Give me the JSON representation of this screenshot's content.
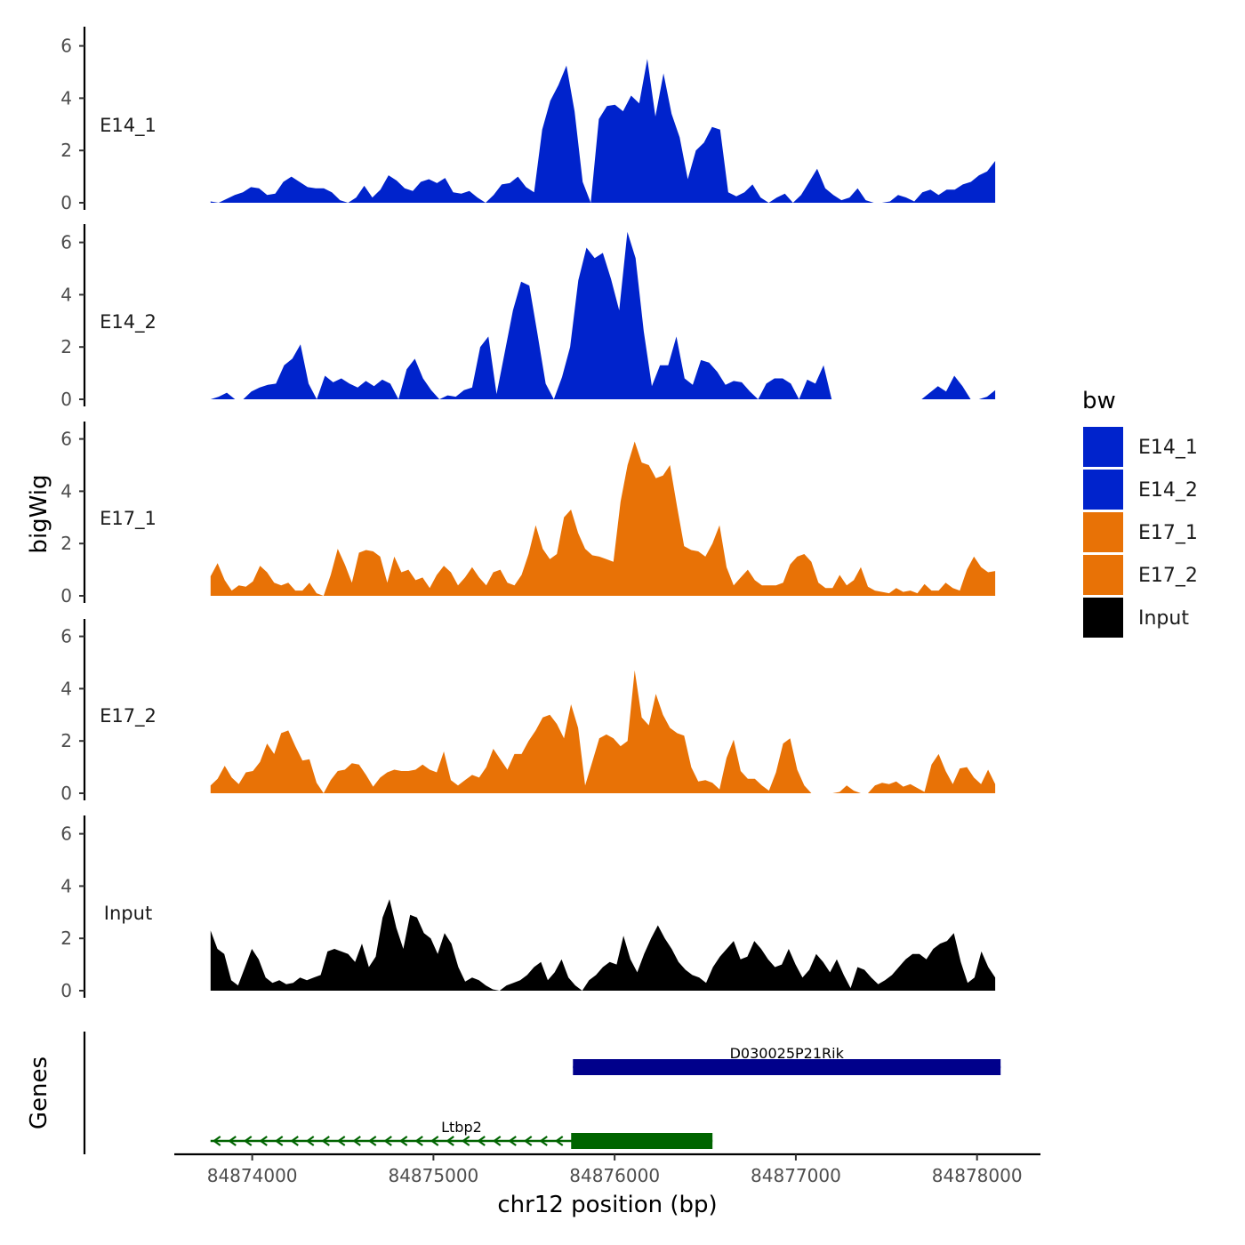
{
  "chart_data": {
    "type": "area",
    "ylabel": "bigWig",
    "xlabel": "chr12 position (bp)",
    "ylim": [
      0,
      6.6
    ],
    "yticks": [
      "0",
      "2",
      "4",
      "6"
    ],
    "xlim": [
      84873570,
      84878350
    ],
    "xrange_data": [
      84873770,
      84878100
    ],
    "xticks": [
      84874000,
      84875000,
      84876000,
      84877000,
      84878000
    ],
    "xtick_labels": [
      "84874000",
      "84875000",
      "84876000",
      "84877000",
      "84878000"
    ],
    "legend": {
      "title": "bw",
      "items": [
        {
          "label": "E14_1",
          "color": "#0023cc"
        },
        {
          "label": "E14_2",
          "color": "#0023cc"
        },
        {
          "label": "E17_1",
          "color": "#e87206"
        },
        {
          "label": "E17_2",
          "color": "#e87206"
        },
        {
          "label": "Input",
          "color": "#000000"
        }
      ]
    },
    "series": [
      {
        "name": "E14_1",
        "color": "#0023cc",
        "values": [
          0.05,
          0,
          0.15,
          0.3,
          0.4,
          0.6,
          0.55,
          0.3,
          0.35,
          0.8,
          1.0,
          0.8,
          0.6,
          0.55,
          0.55,
          0.4,
          0.1,
          0,
          0.2,
          0.65,
          0.2,
          0.5,
          1.05,
          0.85,
          0.55,
          0.45,
          0.8,
          0.9,
          0.75,
          0.95,
          0.4,
          0.35,
          0.45,
          0.2,
          0,
          0.3,
          0.7,
          0.75,
          1.0,
          0.6,
          0.4,
          2.8,
          3.9,
          4.5,
          5.25,
          3.5,
          0.8,
          0,
          3.2,
          3.7,
          3.75,
          3.5,
          4.1,
          3.8,
          5.5,
          3.3,
          4.95,
          3.4,
          2.5,
          0.9,
          2.0,
          2.3,
          2.9,
          2.8,
          0.4,
          0.25,
          0.4,
          0.7,
          0.2,
          0,
          0.2,
          0.35,
          0,
          0.3,
          0.8,
          1.3,
          0.55,
          0.3,
          0.1,
          0.2,
          0.55,
          0.1,
          0,
          0,
          0.05,
          0.3,
          0.2,
          0.05,
          0.4,
          0.5,
          0.3,
          0.5,
          0.5,
          0.7,
          0.8,
          1.05,
          1.2,
          1.6
        ]
      },
      {
        "name": "E14_2",
        "color": "#0023cc",
        "values": [
          0,
          0.1,
          0.25,
          0,
          0,
          0.3,
          0.45,
          0.55,
          0.6,
          1.3,
          1.55,
          2.1,
          0.6,
          0,
          0.9,
          0.65,
          0.8,
          0.6,
          0.45,
          0.7,
          0.5,
          0.75,
          0.6,
          0,
          1.15,
          1.55,
          0.8,
          0.35,
          0,
          0.15,
          0.1,
          0.35,
          0.45,
          2.0,
          2.4,
          0.2,
          1.8,
          3.4,
          4.5,
          4.35,
          2.5,
          0.6,
          0,
          0.85,
          2.0,
          4.55,
          5.8,
          5.4,
          5.6,
          4.6,
          3.4,
          6.4,
          5.4,
          2.6,
          0.5,
          1.3,
          1.3,
          2.4,
          0.8,
          0.55,
          1.5,
          1.4,
          1.05,
          0.55,
          0.7,
          0.65,
          0.3,
          0,
          0.6,
          0.8,
          0.8,
          0.6,
          0,
          0.75,
          0.6,
          1.3,
          0,
          0,
          0,
          0,
          0,
          0,
          0,
          0,
          0,
          0,
          0,
          0,
          0.25,
          0.5,
          0.3,
          0.9,
          0.5,
          0,
          0,
          0.1,
          0.35
        ]
      },
      {
        "name": "E17_1",
        "color": "#e87206",
        "values": [
          0.75,
          1.25,
          0.6,
          0.2,
          0.4,
          0.35,
          0.55,
          1.15,
          0.9,
          0.5,
          0.4,
          0.5,
          0.2,
          0.2,
          0.5,
          0.1,
          0,
          0.8,
          1.8,
          1.2,
          0.5,
          1.65,
          1.75,
          1.7,
          1.5,
          0.5,
          1.5,
          0.9,
          1.0,
          0.6,
          0.7,
          0.3,
          0.8,
          1.15,
          0.9,
          0.4,
          0.7,
          1.1,
          0.7,
          0.4,
          0.9,
          1.0,
          0.5,
          0.4,
          0.8,
          1.6,
          2.7,
          1.8,
          1.4,
          1.6,
          3.0,
          3.3,
          2.4,
          1.8,
          1.55,
          1.5,
          1.4,
          1.3,
          3.6,
          5.0,
          5.9,
          5.1,
          5.0,
          4.5,
          4.6,
          5.0,
          3.4,
          1.9,
          1.75,
          1.7,
          1.5,
          2.0,
          2.7,
          1.1,
          0.4,
          0.7,
          1.0,
          0.6,
          0.4,
          0.4,
          0.4,
          0.5,
          1.2,
          1.5,
          1.6,
          1.3,
          0.5,
          0.3,
          0.3,
          0.8,
          0.4,
          0.6,
          1.1,
          0.35,
          0.2,
          0.15,
          0.1,
          0.3,
          0.15,
          0.2,
          0.1,
          0.45,
          0.2,
          0.2,
          0.5,
          0.3,
          0.2,
          1.0,
          1.5,
          1.1,
          0.9,
          0.95
        ]
      },
      {
        "name": "E17_2",
        "color": "#e87206",
        "values": [
          0.3,
          0.55,
          1.05,
          0.6,
          0.35,
          0.8,
          0.85,
          1.2,
          1.9,
          1.5,
          2.3,
          2.4,
          1.8,
          1.25,
          1.3,
          0.4,
          0,
          0.5,
          0.85,
          0.9,
          1.15,
          1.1,
          0.7,
          0.25,
          0.6,
          0.8,
          0.9,
          0.85,
          0.85,
          0.9,
          1.1,
          0.9,
          0.8,
          1.6,
          0.5,
          0.3,
          0.5,
          0.7,
          0.6,
          1.0,
          1.7,
          1.3,
          0.9,
          1.5,
          1.5,
          2.0,
          2.4,
          2.9,
          3.0,
          2.65,
          2.1,
          3.4,
          2.5,
          0.3,
          1.2,
          2.1,
          2.25,
          2.1,
          1.8,
          2.0,
          4.7,
          2.9,
          2.6,
          3.8,
          3.0,
          2.5,
          2.3,
          2.2,
          1.0,
          0.45,
          0.5,
          0.4,
          0.15,
          1.35,
          2.05,
          0.85,
          0.55,
          0.55,
          0.3,
          0.1,
          0.8,
          1.9,
          2.1,
          0.9,
          0.3,
          0,
          0,
          0,
          0,
          0.05,
          0.3,
          0.1,
          0,
          0,
          0.3,
          0.4,
          0.35,
          0.45,
          0.25,
          0.35,
          0.2,
          0.05,
          1.1,
          1.5,
          0.85,
          0.35,
          0.95,
          1.0,
          0.6,
          0.35,
          0.9,
          0.35
        ]
      },
      {
        "name": "Input",
        "color": "#000000",
        "values": [
          2.3,
          1.6,
          1.4,
          0.4,
          0.2,
          0.9,
          1.6,
          1.2,
          0.5,
          0.3,
          0.4,
          0.25,
          0.3,
          0.5,
          0.4,
          0.5,
          0.6,
          1.5,
          1.6,
          1.5,
          1.4,
          1.1,
          1.8,
          0.9,
          1.3,
          2.8,
          3.5,
          2.4,
          1.6,
          2.9,
          2.8,
          2.2,
          2.0,
          1.4,
          2.2,
          1.8,
          0.9,
          0.35,
          0.5,
          0.4,
          0.2,
          0.05,
          0,
          0.2,
          0.3,
          0.4,
          0.6,
          0.9,
          1.1,
          0.4,
          0.7,
          1.2,
          0.5,
          0.2,
          0,
          0.4,
          0.6,
          0.9,
          1.1,
          1.0,
          2.1,
          1.2,
          0.7,
          1.4,
          2.0,
          2.5,
          2.0,
          1.6,
          1.1,
          0.8,
          0.6,
          0.5,
          0.3,
          0.9,
          1.3,
          1.6,
          1.9,
          1.2,
          1.3,
          1.9,
          1.6,
          1.2,
          0.9,
          1.0,
          1.6,
          1.0,
          0.5,
          0.8,
          1.4,
          1.1,
          0.7,
          1.2,
          0.6,
          0.1,
          0.9,
          0.8,
          0.5,
          0.25,
          0.4,
          0.6,
          0.9,
          1.2,
          1.4,
          1.4,
          1.2,
          1.6,
          1.8,
          1.9,
          2.2,
          1.1,
          0.3,
          0.5,
          1.5,
          0.9,
          0.5
        ]
      }
    ],
    "genes": {
      "ylabel": "Genes",
      "items": [
        {
          "name": "D030025P21Rik",
          "start": 84875770,
          "end": 84878130,
          "thick_start": 84875770,
          "thick_end": 84878130,
          "strand": "+",
          "color": "#00008b"
        },
        {
          "name": "Ltbp2",
          "start": 84873770,
          "end": 84876540,
          "thick_start": 84875760,
          "thick_end": 84876540,
          "strand": "-",
          "color": "#006400"
        }
      ]
    }
  }
}
